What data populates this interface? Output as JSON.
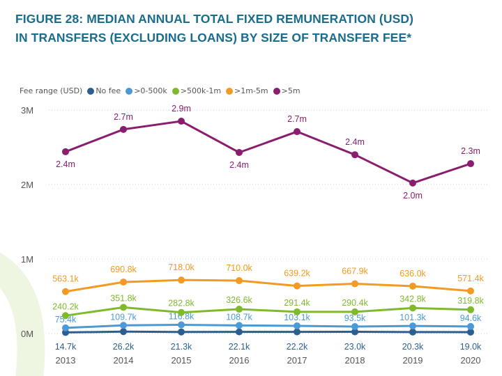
{
  "title_line1": "FIGURE 28: MEDIAN ANNUAL TOTAL FIXED REMUNERATION (USD)",
  "title_line2": "IN TRANSFERS (EXCLUDING LOANS) BY SIZE OF TRANSFER FEE*",
  "chart_data": {
    "type": "line",
    "title": "FIGURE 28: MEDIAN ANNUAL TOTAL FIXED REMUNERATION (USD) IN TRANSFERS (EXCLUDING LOANS) BY SIZE OF TRANSFER FEE*",
    "legend_title": "Fee range (USD)",
    "legend_position": "top-left",
    "x": [
      "2013",
      "2014",
      "2015",
      "2016",
      "2017",
      "2018",
      "2019",
      "2020"
    ],
    "y_ticks": [
      "0M",
      "1M",
      "2M",
      "3M"
    ],
    "ylim": [
      0,
      3000000
    ],
    "grid": "horizontal dotted",
    "series": [
      {
        "name": "No fee",
        "color": "#2c5f8f",
        "values": [
          14700,
          26200,
          21300,
          22100,
          22200,
          23000,
          20300,
          19000
        ],
        "labels": [
          "14.7k",
          "26.2k",
          "21.3k",
          "22.1k",
          "22.2k",
          "23.0k",
          "20.3k",
          "19.0k"
        ]
      },
      {
        "name": ">0-500k",
        "color": "#4b9ad6",
        "values": [
          75400,
          109700,
          116800,
          108700,
          103100,
          93500,
          101300,
          94600
        ],
        "labels": [
          "75.4k",
          "109.7k",
          "116.8k",
          "108.7k",
          "103.1k",
          "93.5k",
          "101.3k",
          "94.6k"
        ]
      },
      {
        "name": ">500k-1m",
        "color": "#7fba2c",
        "values": [
          240200,
          351800,
          282800,
          326600,
          291400,
          290400,
          342800,
          319800
        ],
        "labels": [
          "240.2k",
          "351.8k",
          "282.8k",
          "326.6k",
          "291.4k",
          "290.4k",
          "342.8k",
          "319.8k"
        ]
      },
      {
        "name": ">1m-5m",
        "color": "#f29a22",
        "values": [
          563100,
          690800,
          718000,
          710000,
          639200,
          667900,
          636000,
          571400
        ],
        "labels": [
          "563.1k",
          "690.8k",
          "718.0k",
          "710.0k",
          "639.2k",
          "667.9k",
          "636.0k",
          "571.4k"
        ]
      },
      {
        "name": ">5m",
        "color": "#8a1d6e",
        "values": [
          2440000,
          2740000,
          2850000,
          2430000,
          2710000,
          2400000,
          2020000,
          2280000
        ],
        "labels": [
          "2.4m",
          "2.7m",
          "2.9m",
          "2.4m",
          "2.7m",
          "2.4m",
          "2.0m",
          "2.3m"
        ]
      }
    ]
  }
}
